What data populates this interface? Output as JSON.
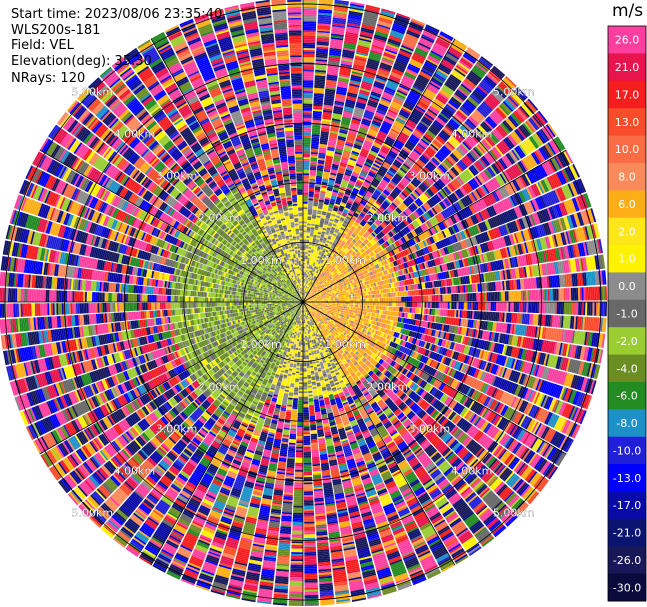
{
  "info": {
    "start_time": "Start time: 2023/08/06 23:35:40",
    "instrument": "WLS200s-181",
    "field": "Field: VEL",
    "elevation": "Elevation(deg): 35.30",
    "nrays": "NRays: 120"
  },
  "colorbar": {
    "unit": "m/s",
    "bands": [
      {
        "label": "26.0",
        "color": "#ff3fa0"
      },
      {
        "label": "21.0",
        "color": "#e8144e"
      },
      {
        "label": "17.0",
        "color": "#f51e1e"
      },
      {
        "label": "13.0",
        "color": "#f84c2a"
      },
      {
        "label": "10.0",
        "color": "#fa6c44"
      },
      {
        "label": "8.0",
        "color": "#fb8a5a"
      },
      {
        "label": "6.0",
        "color": "#fdae16"
      },
      {
        "label": "2.0",
        "color": "#fde61a"
      },
      {
        "label": "1.0",
        "color": "#fff200"
      },
      {
        "label": "0.0",
        "color": "#8c8c8c"
      },
      {
        "label": "-1.0",
        "color": "#686868"
      },
      {
        "label": "-2.0",
        "color": "#9acd32"
      },
      {
        "label": "-4.0",
        "color": "#6b8e23"
      },
      {
        "label": "-6.0",
        "color": "#228b22"
      },
      {
        "label": "-8.0",
        "color": "#1e90c8"
      },
      {
        "label": "-10.0",
        "color": "#2020d8"
      },
      {
        "label": "-13.0",
        "color": "#0000ff"
      },
      {
        "label": "-17.0",
        "color": "#0a0aa8"
      },
      {
        "label": "-21.0",
        "color": "#0c1472"
      },
      {
        "label": "-26.0",
        "color": "#181858"
      },
      {
        "label": "-30.0",
        "color": "#0a0a3c"
      }
    ]
  },
  "chart_data": {
    "type": "heatmap",
    "projection": "polar-ppi",
    "field": "VEL",
    "nrays": 120,
    "elevation_deg": 35.3,
    "range_rings_km": [
      1.0,
      2.0,
      3.0,
      4.0,
      5.0
    ],
    "range_ring_labels": [
      "1.00km",
      "2.00km",
      "3.00km",
      "4.00km",
      "5.00km"
    ],
    "max_range_km": 5.1,
    "spokes_deg": [
      0,
      30,
      60,
      90,
      120,
      150,
      180,
      210,
      240,
      270,
      300,
      330
    ],
    "value_range_ms": [
      -30.0,
      30.0
    ],
    "near_field_pattern": [
      {
        "azimuth_deg": [
          30,
          150
        ],
        "range_km": [
          0.0,
          1.6
        ],
        "dominant_range_ms": [
          1.0,
          8.0
        ]
      },
      {
        "azimuth_deg": [
          150,
          200
        ],
        "range_km": [
          0.0,
          1.6
        ],
        "dominant_range_ms": [
          -2.0,
          2.0
        ]
      },
      {
        "azimuth_deg": [
          200,
          330
        ],
        "range_km": [
          0.0,
          2.2
        ],
        "dominant_range_ms": [
          -6.0,
          -1.0
        ]
      },
      {
        "azimuth_deg": [
          330,
          30
        ],
        "range_km": [
          0.0,
          1.6
        ],
        "dominant_range_ms": [
          -2.0,
          2.0
        ]
      }
    ]
  }
}
